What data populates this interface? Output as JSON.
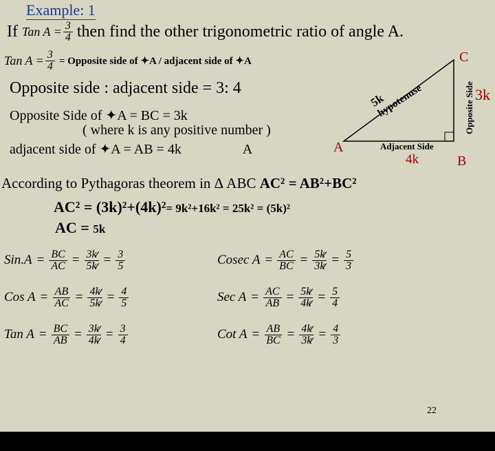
{
  "header": "Example: 1",
  "problem": {
    "if": "If",
    "tan_lhs": "Tan A =",
    "tan_num": "3",
    "tan_den": "4",
    "then": "then find the other trigonometric ratio of angle A."
  },
  "tanA": {
    "lhs": "Tan A =",
    "num": "3",
    "den": "4",
    "rhs": "= Opposite side of ✦A  / adjacent side of ✦A"
  },
  "ratio_text": "Opposite side : adjacent side = 3: 4",
  "opp_bc": "Opposite Side of ✦A = BC = 3k",
  "where_k": "( where k is any positive number )",
  "adj_ab": "adjacent side of ✦A = AB = 4k",
  "A_letter": "A",
  "pythag_line": "According to Pythagoras theorem in Δ ABC ",
  "pythag_eq": "AC² = AB²+BC²",
  "calc_line": {
    "lhs": "AC² = (3k)²+(4k)²",
    "rhs": " = 9k²+16k² = 25k² = (5k)²"
  },
  "ac_final": {
    "lhs": "AC = ",
    "rhs": "5k"
  },
  "triangle": {
    "C": "C",
    "A": "A",
    "B": "B",
    "fivek": "5k",
    "hyp": "hypotenuse",
    "opp": "Opposite Side",
    "threek": "3k",
    "adj": "Adjacent Side",
    "fourk": "4k",
    "stroke": "#000000",
    "label_color": "#a00000"
  },
  "ratios": [
    {
      "fn": "Sin.A",
      "r1n": "BC",
      "r1d": "AC",
      "r2n": "3k",
      "r2d": "5k",
      "rn": "3",
      "rd": "5",
      "fn2": "Cosec A",
      "s1n": "AC",
      "s1d": "BC",
      "s2n": "5k",
      "s2d": "3k",
      "sn": "5",
      "sd": "3"
    },
    {
      "fn": "Cos A",
      "r1n": "AB",
      "r1d": "AC",
      "r2n": "4k",
      "r2d": "5k",
      "rn": "4",
      "rd": "5",
      "fn2": "Sec A",
      "s1n": "AC",
      "s1d": "AB",
      "s2n": "5k",
      "s2d": "4k",
      "sn": "5",
      "sd": "4"
    },
    {
      "fn": "Tan A",
      "r1n": "BC",
      "r1d": "AB",
      "r2n": "3k",
      "r2d": "4k",
      "rn": "3",
      "rd": "4",
      "fn2": "Cot A",
      "s1n": "AB",
      "s1d": "BC",
      "s2n": "4k",
      "s2d": "3k",
      "sn": "4",
      "sd": "3"
    }
  ],
  "page_num": "22"
}
